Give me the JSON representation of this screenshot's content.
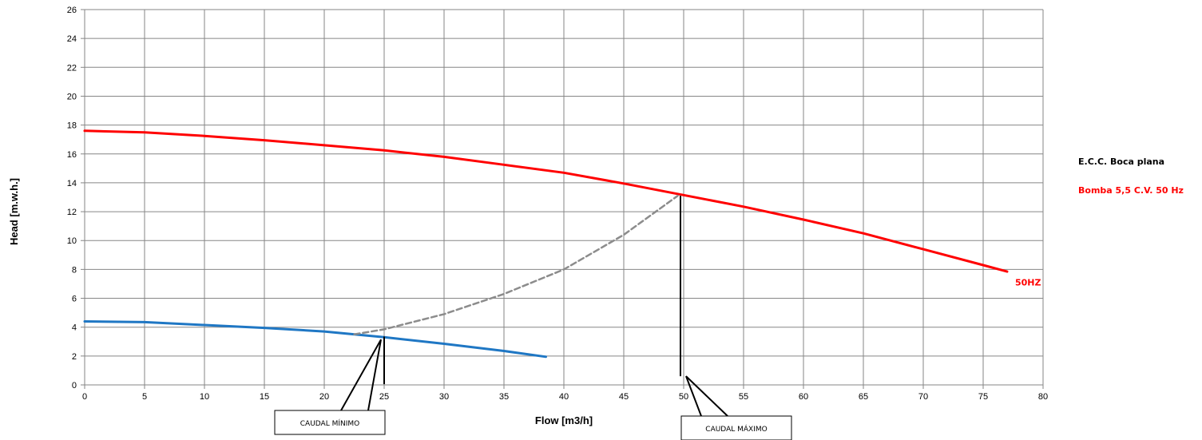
{
  "chart_data": {
    "type": "line",
    "xlabel": "Flow [m3/h]",
    "ylabel": "Head [m.w.h.]",
    "xlim": [
      0,
      80
    ],
    "ylim": [
      0,
      26
    ],
    "x_ticks": [
      0,
      5,
      10,
      15,
      20,
      25,
      30,
      35,
      40,
      45,
      50,
      55,
      60,
      65,
      70,
      75,
      80
    ],
    "y_ticks": [
      0,
      2,
      4,
      6,
      8,
      10,
      12,
      14,
      16,
      18,
      20,
      22,
      24,
      26
    ],
    "grid": true,
    "legend": {
      "title": "E.C.C. Boca plana",
      "entries": [
        {
          "label": "Bomba 5,5 C.V. 50 Hz",
          "color": "#ff0000"
        }
      ]
    },
    "series": [
      {
        "name": "50HZ",
        "color": "#ff0000",
        "style": "solid",
        "x": [
          0,
          5,
          10,
          15,
          20,
          25,
          30,
          35,
          40,
          45,
          50,
          55,
          60,
          65,
          70,
          75,
          77
        ],
        "y": [
          17.6,
          17.5,
          17.25,
          16.95,
          16.6,
          16.25,
          15.8,
          15.25,
          14.7,
          13.95,
          13.15,
          12.35,
          11.45,
          10.5,
          9.4,
          8.3,
          7.85
        ]
      },
      {
        "color": "#1f77c4",
        "style": "solid",
        "x": [
          0,
          5,
          10,
          15,
          20,
          25,
          30,
          35,
          38.5
        ],
        "y": [
          4.4,
          4.35,
          4.15,
          3.95,
          3.7,
          3.3,
          2.85,
          2.35,
          1.95
        ]
      },
      {
        "color": "#8c8c8c",
        "style": "dashed",
        "x": [
          22.5,
          25,
          30,
          35,
          40,
          45,
          48,
          49.5
        ],
        "y": [
          3.5,
          3.85,
          4.9,
          6.3,
          8.0,
          10.4,
          12.2,
          13.1
        ]
      }
    ],
    "annotations": [
      {
        "text": "50HZ",
        "color": "#ff0000"
      },
      {
        "text": "CAUDAL MÍNIMO",
        "x": 25
      },
      {
        "text": "CAUDAL MÁXIMO",
        "x": 50
      }
    ]
  }
}
